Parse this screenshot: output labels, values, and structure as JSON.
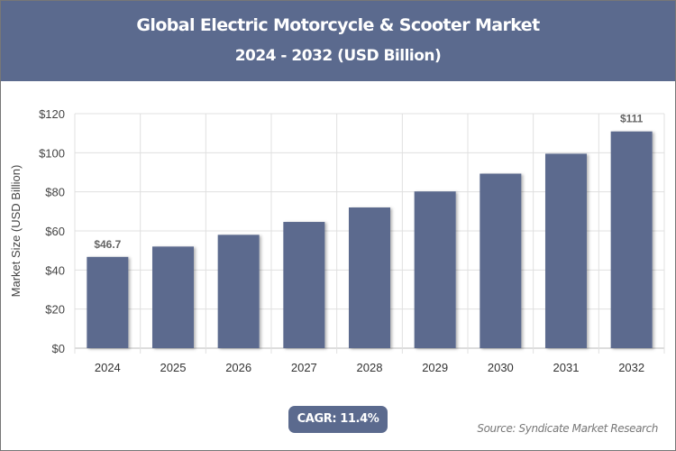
{
  "header": {
    "title": "Global Electric Motorcycle & Scooter Market",
    "subtitle": "2024 - 2032 (USD Billion)"
  },
  "badge": {
    "cagr": "CAGR: 11.4%"
  },
  "footer": {
    "source": "Source: Syndicate Market Research"
  },
  "colors": {
    "bar": "#5b6a8e",
    "header": "#5b6a8e",
    "grid": "#e0e0e0"
  },
  "chart_data": {
    "type": "bar",
    "title": "Global Electric Motorcycle & Scooter Market",
    "subtitle": "2024 - 2032 (USD Billion)",
    "xlabel": "",
    "ylabel": "Market Size (USD Billion)",
    "categories": [
      "2024",
      "2025",
      "2026",
      "2027",
      "2028",
      "2029",
      "2030",
      "2031",
      "2032"
    ],
    "values": [
      46.7,
      52.0,
      58.0,
      64.6,
      72.0,
      80.2,
      89.3,
      99.5,
      110.9
    ],
    "data_labels": {
      "2024": "$46.7",
      "2032": "$111"
    },
    "ylim": [
      0,
      120
    ],
    "yticks": [
      0,
      20,
      40,
      60,
      80,
      100,
      120
    ],
    "ytick_labels": [
      "$0",
      "$20",
      "$40",
      "$60",
      "$80",
      "$100",
      "$120"
    ],
    "grid": true,
    "legend": "none"
  }
}
